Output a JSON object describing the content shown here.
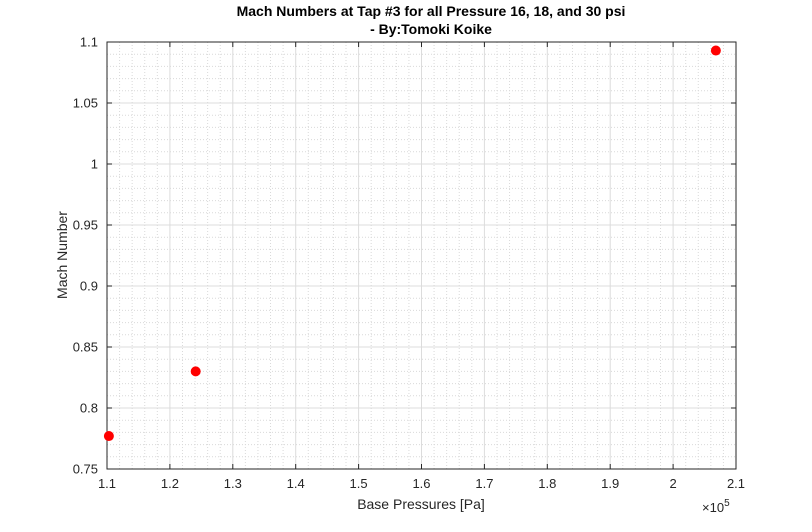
{
  "chart_data": {
    "type": "scatter",
    "title": "Mach Numbers at Tap #3 for all Pressure 16, 18, and 30 psi",
    "subtitle": "- By:Tomoki Koike",
    "xlabel": "Base Pressures [Pa]",
    "ylabel": "Mach Number",
    "x_exponent_label": "×10",
    "x_exponent_power": "5",
    "x_scale_factor": 100000,
    "xlim": [
      110000,
      210000
    ],
    "ylim": [
      0.75,
      1.1
    ],
    "x_ticks": [
      110000,
      120000,
      130000,
      140000,
      150000,
      160000,
      170000,
      180000,
      190000,
      200000,
      210000
    ],
    "x_tick_labels": [
      "1.1",
      "1.2",
      "1.3",
      "1.4",
      "1.5",
      "1.6",
      "1.7",
      "1.8",
      "1.9",
      "2",
      "2.1"
    ],
    "y_ticks": [
      0.75,
      0.8,
      0.85,
      0.9,
      0.95,
      1.0,
      1.05,
      1.1
    ],
    "y_tick_labels": [
      "0.75",
      "0.8",
      "0.85",
      "0.9",
      "0.95",
      "1",
      "1.05",
      "1.1"
    ],
    "grid": true,
    "minor_grid": true,
    "marker_color": "#ff0000",
    "points": [
      {
        "x": 110300,
        "y": 0.777
      },
      {
        "x": 124100,
        "y": 0.83
      },
      {
        "x": 206800,
        "y": 1.093
      }
    ]
  }
}
